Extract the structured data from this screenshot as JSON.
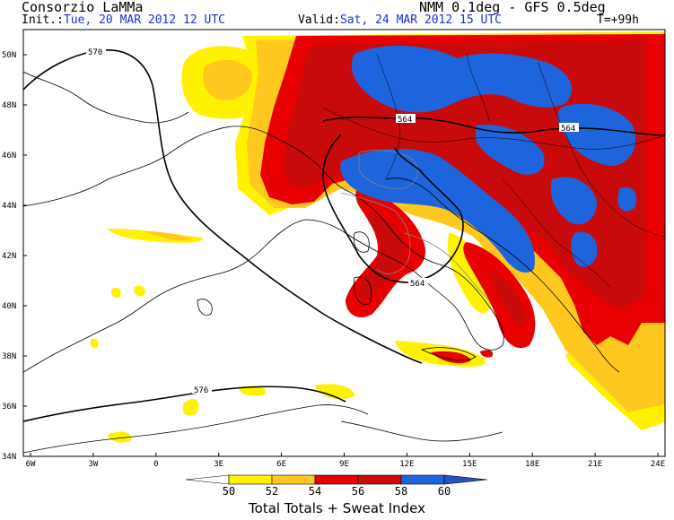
{
  "header": {
    "title": "Consorzio LaMMa",
    "model": "NMM 0.1deg - GFS 0.5deg",
    "init_label": "Init.:",
    "init_value": "Tue, 20 MAR 2012   12 UTC",
    "valid_label": "Valid:",
    "valid_value": "Sat, 24 MAR 2012   15 UTC",
    "forecast_step": "T=+99h"
  },
  "map": {
    "lat_labels": [
      "50N",
      "48N",
      "46N",
      "44N",
      "42N",
      "40N",
      "38N",
      "36N",
      "34N"
    ],
    "lon_labels": [
      "6W",
      "3W",
      "0",
      "3E",
      "6E",
      "9E",
      "12E",
      "15E",
      "18E",
      "21E",
      "24E"
    ],
    "contour_labels": [
      "570",
      "564",
      "564",
      "564",
      "576"
    ],
    "colors": {
      "c50": "#fff200",
      "c52": "#ffc81e",
      "c54": "#e80000",
      "c56": "#c80a0a",
      "c58": "#1e64dc",
      "c60": "#2a50c8"
    }
  },
  "colorbar": {
    "labels": [
      "50",
      "52",
      "54",
      "56",
      "58",
      "60"
    ],
    "title": "Total Totals + Sweat Index"
  }
}
